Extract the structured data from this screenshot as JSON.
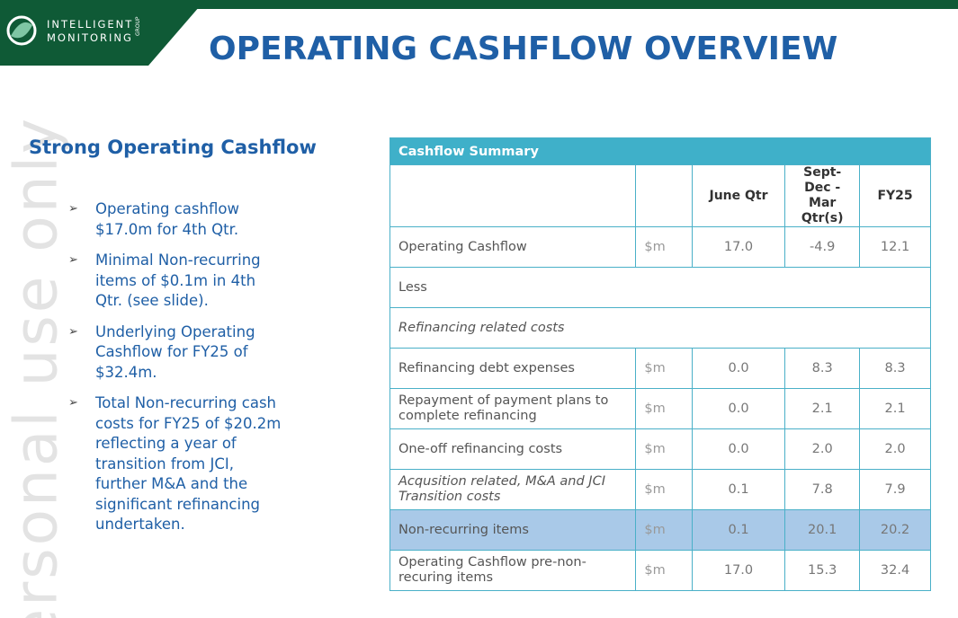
{
  "header": {
    "logo": {
      "line1": "INTELLIGENT",
      "line2": "MONITORING",
      "group": "GROUP"
    },
    "title": "OPERATING CASHFLOW OVERVIEW"
  },
  "watermark": "ersonal use only",
  "left": {
    "heading": "Strong Operating Cashflow",
    "bullets": [
      "Operating cashflow $17.0m for 4th Qtr.",
      "Minimal Non-recurring items of $0.1m in 4th Qtr. (see slide).",
      "Underlying Operating Cashflow for FY25 of $32.4m.",
      "Total Non-recurring cash costs for FY25 of $20.2m reflecting a year of transition from JCI, further M&A and the significant refinancing undertaken."
    ]
  },
  "table": {
    "title": "Cashflow Summary",
    "columns": [
      "June Qtr",
      "Sept-Dec - Mar Qtr(s)",
      "FY25"
    ],
    "rows": [
      {
        "label": "Operating Cashflow",
        "unit": "$m",
        "values": [
          "17.0",
          "-4.9",
          "12.1"
        ]
      },
      {
        "label": "Less"
      },
      {
        "label": "Refinancing related costs",
        "italic": true
      },
      {
        "label": "Refinancing debt expenses",
        "unit": "$m",
        "values": [
          "0.0",
          "8.3",
          "8.3"
        ]
      },
      {
        "label": "Repayment of payment plans to complete refinancing",
        "unit": "$m",
        "values": [
          "0.0",
          "2.1",
          "2.1"
        ]
      },
      {
        "label": "One-off refinancing costs",
        "unit": "$m",
        "values": [
          "0.0",
          "2.0",
          "2.0"
        ]
      },
      {
        "label": "Acqusition related, M&A and JCI Transition costs",
        "italic": true,
        "unit": "$m",
        "values": [
          "0.1",
          "7.8",
          "7.9"
        ]
      },
      {
        "label": "Non-recurring items",
        "highlight": true,
        "unit": "$m",
        "values": [
          "0.1",
          "20.1",
          "20.2"
        ]
      },
      {
        "label": "Operating Cashflow pre-non-recuring items",
        "unit": "$m",
        "values": [
          "17.0",
          "15.3",
          "32.4"
        ]
      }
    ]
  }
}
